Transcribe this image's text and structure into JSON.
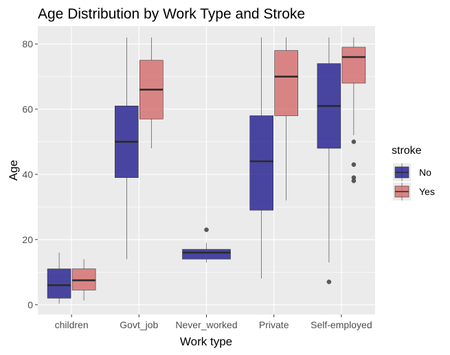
{
  "chart_data": {
    "type": "boxplot",
    "title": "Age Distribution by Work Type and Stroke",
    "xlabel": "Work type",
    "ylabel": "Age",
    "categories": [
      "children",
      "Govt_job",
      "Never_worked",
      "Private",
      "Self-employed"
    ],
    "ylim": [
      -3,
      85.5
    ],
    "yticks": [
      0,
      20,
      40,
      60,
      80
    ],
    "grid": true,
    "legend": {
      "title": "stroke",
      "position": "right"
    },
    "series": [
      {
        "name": "No",
        "color": "#1f1b8f",
        "boxes": [
          {
            "category": "children",
            "min": 0.3,
            "q1": 2,
            "median": 6,
            "q3": 11,
            "max": 16,
            "outliers": []
          },
          {
            "category": "Govt_job",
            "min": 14,
            "q1": 39,
            "median": 50,
            "q3": 61,
            "max": 82,
            "outliers": []
          },
          {
            "category": "Never_worked",
            "min": 13,
            "q1": 14,
            "median": 16,
            "q3": 17,
            "max": 19,
            "outliers": [
              23
            ]
          },
          {
            "category": "Private",
            "min": 8,
            "q1": 29,
            "median": 44,
            "q3": 58,
            "max": 82,
            "outliers": []
          },
          {
            "category": "Self-employed",
            "min": 13,
            "q1": 48,
            "median": 61,
            "q3": 74,
            "max": 82,
            "outliers": [
              7
            ]
          }
        ]
      },
      {
        "name": "Yes",
        "color": "#d46a6a",
        "boxes": [
          {
            "category": "children",
            "min": 1.3,
            "q1": 4.5,
            "median": 7.5,
            "q3": 11,
            "max": 14,
            "outliers": []
          },
          {
            "category": "Govt_job",
            "min": 48,
            "q1": 57,
            "median": 66,
            "q3": 75,
            "max": 82,
            "outliers": []
          },
          {
            "category": "Private",
            "min": 32,
            "q1": 58,
            "median": 70,
            "q3": 78,
            "max": 82,
            "outliers": []
          },
          {
            "category": "Self-employed",
            "min": 52,
            "q1": 68,
            "median": 76,
            "q3": 79,
            "max": 82,
            "outliers": [
              50,
              43,
              39,
              38
            ]
          }
        ]
      }
    ]
  }
}
